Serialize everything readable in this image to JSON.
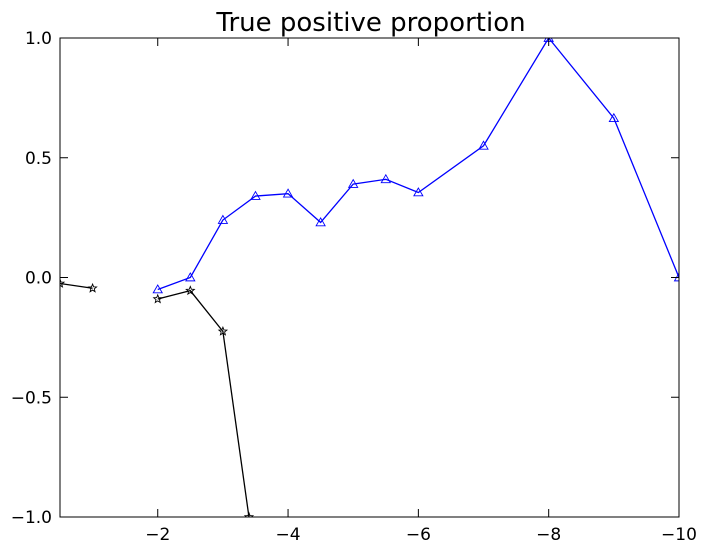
{
  "chart_data": {
    "type": "line",
    "title": "True positive proportion",
    "xlabel": "",
    "ylabel": "",
    "xlim": [
      -0.5,
      -10
    ],
    "ylim": [
      -1.0,
      1.0
    ],
    "x_inverted": true,
    "grid": false,
    "xticks": [
      -2,
      -4,
      -6,
      -8,
      -10
    ],
    "xtick_labels": [
      "−2",
      "−4",
      "−6",
      "−8",
      "−10"
    ],
    "yticks": [
      1.0,
      0.5,
      0.0,
      -0.5,
      -1.0
    ],
    "ytick_labels": [
      "1.0",
      "0.5",
      "0.0",
      "−0.5",
      "−1.0"
    ],
    "series": [
      {
        "color": "#0000ff",
        "marker": "triangle",
        "segments": [
          {
            "x": [
              -2,
              -2.5,
              -3,
              -3.5,
              -4,
              -4.5,
              -5,
              -5.5,
              -6,
              -7,
              -8,
              -9,
              -10
            ],
            "y": [
              -0.05,
              0.0,
              0.24,
              0.34,
              0.35,
              0.23,
              0.39,
              0.41,
              0.355,
              0.55,
              1.0,
              0.665,
              0.0
            ]
          }
        ]
      },
      {
        "color": "#000000",
        "marker": "star",
        "segments": [
          {
            "x": [
              -0.5,
              -1.0
            ],
            "y": [
              -0.025,
              -0.045
            ]
          },
          {
            "x": [
              -2,
              -2.5,
              -3,
              -3.4
            ],
            "y": [
              -0.09,
              -0.055,
              -0.225,
              -1.0
            ]
          }
        ]
      }
    ]
  }
}
